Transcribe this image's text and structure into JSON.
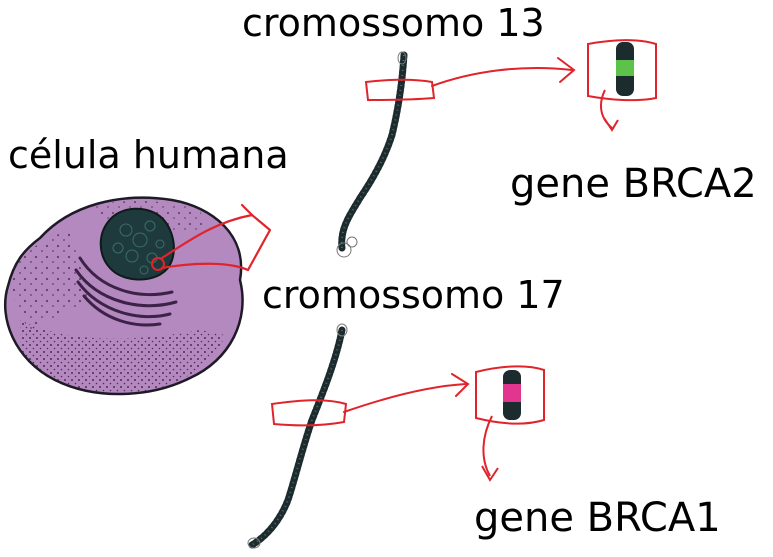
{
  "labels": {
    "cell": "célula humana",
    "chromosome_13": "cromossomo 13",
    "chromosome_17": "cromossomo 17",
    "gene_brca2": "gene BRCA2",
    "gene_brca1": "gene BRCA1"
  },
  "colors": {
    "cell_fill": "#b489c0",
    "cell_outline": "#1e1a26",
    "nucleus": "#1f3a3c",
    "chromatin": "#1c2b2e",
    "arrow": "#e0242c",
    "brca2_band": "#5cc24a",
    "brca1_band": "#e2358f"
  }
}
